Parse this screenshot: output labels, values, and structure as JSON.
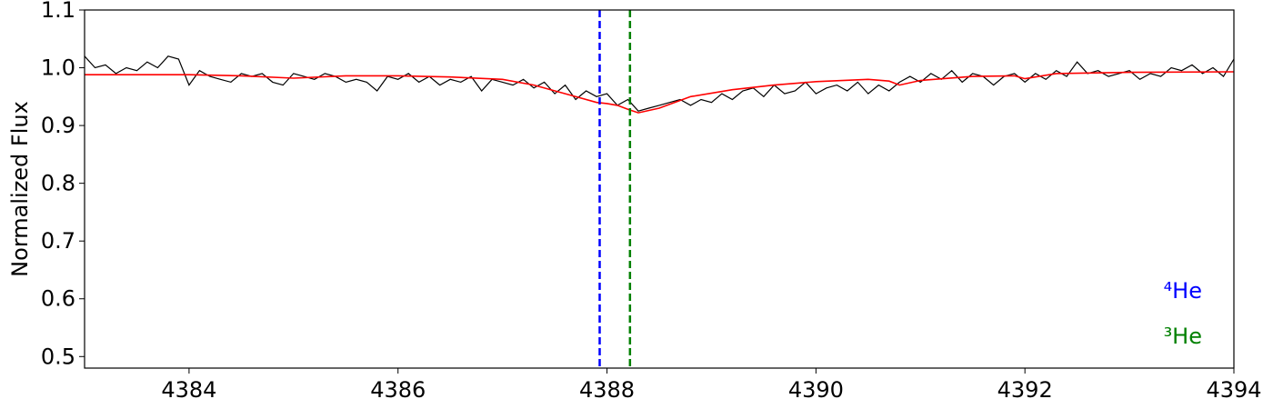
{
  "chart_data": {
    "type": "line",
    "ylabel": "Normalized Flux",
    "xlim": [
      4383,
      4394
    ],
    "xticks": [
      4384,
      4386,
      4388,
      4390,
      4392,
      4394
    ],
    "ylim": [
      0.48,
      1.1
    ],
    "yticks": [
      0.5,
      0.6,
      0.7,
      0.8,
      0.9,
      {
        "value": 1,
        "label": "1.0"
      },
      1.1
    ],
    "series": [
      {
        "color": "#000000",
        "x": [
          4383,
          4383.1,
          4383.2,
          4383.3,
          4383.4,
          4383.5,
          4383.6,
          4383.7,
          4383.8,
          4383.9,
          4384,
          4384.1,
          4384.2,
          4384.3,
          4384.4,
          4384.5,
          4384.6,
          4384.7,
          4384.8,
          4384.9,
          4385,
          4385.1,
          4385.2,
          4385.3,
          4385.4,
          4385.5,
          4385.6,
          4385.7,
          4385.8,
          4385.9,
          4386,
          4386.1,
          4386.2,
          4386.3,
          4386.4,
          4386.5,
          4386.6,
          4386.7,
          4386.8,
          4386.9,
          4387,
          4387.1,
          4387.2,
          4387.3,
          4387.4,
          4387.5,
          4387.6,
          4387.7,
          4387.8,
          4387.9,
          4388,
          4388.1,
          4388.2,
          4388.3,
          4388.4,
          4388.5,
          4388.6,
          4388.7,
          4388.8,
          4388.9,
          4389,
          4389.1,
          4389.2,
          4389.3,
          4389.4,
          4389.5,
          4389.6,
          4389.7,
          4389.8,
          4389.9,
          4390,
          4390.1,
          4390.2,
          4390.3,
          4390.4,
          4390.5,
          4390.6,
          4390.7,
          4390.8,
          4390.9,
          4391,
          4391.1,
          4391.2,
          4391.3,
          4391.4,
          4391.5,
          4391.6,
          4391.7,
          4391.8,
          4391.9,
          4392,
          4392.1,
          4392.2,
          4392.3,
          4392.4,
          4392.5,
          4392.6,
          4392.7,
          4392.8,
          4392.9,
          4393,
          4393.1,
          4393.2,
          4393.3,
          4393.4,
          4393.5,
          4393.6,
          4393.7,
          4393.8,
          4393.9,
          4394
        ],
        "values": [
          1.02,
          1.0,
          1.005,
          0.99,
          1.0,
          0.995,
          1.01,
          1.0,
          1.02,
          1.015,
          0.97,
          0.995,
          0.985,
          0.98,
          0.975,
          0.99,
          0.985,
          0.99,
          0.975,
          0.97,
          0.99,
          0.985,
          0.98,
          0.99,
          0.985,
          0.975,
          0.98,
          0.975,
          0.96,
          0.985,
          0.98,
          0.99,
          0.975,
          0.985,
          0.97,
          0.98,
          0.975,
          0.985,
          0.96,
          0.98,
          0.975,
          0.97,
          0.98,
          0.965,
          0.975,
          0.955,
          0.97,
          0.945,
          0.96,
          0.95,
          0.955,
          0.935,
          0.945,
          0.925,
          0.93,
          0.935,
          0.94,
          0.945,
          0.935,
          0.945,
          0.94,
          0.955,
          0.945,
          0.96,
          0.965,
          0.95,
          0.97,
          0.955,
          0.96,
          0.975,
          0.955,
          0.965,
          0.97,
          0.96,
          0.975,
          0.955,
          0.97,
          0.96,
          0.975,
          0.985,
          0.975,
          0.99,
          0.98,
          0.995,
          0.975,
          0.99,
          0.985,
          0.97,
          0.985,
          0.99,
          0.975,
          0.99,
          0.98,
          0.995,
          0.985,
          1.01,
          0.99,
          0.995,
          0.985,
          0.99,
          0.995,
          0.98,
          0.99,
          0.985,
          1.0,
          0.995,
          1.005,
          0.99,
          1.0,
          0.985,
          1.015
        ]
      },
      {
        "color": "#ff0000",
        "x": [
          4383,
          4383.5,
          4384,
          4384.5,
          4385,
          4385.5,
          4386,
          4386.5,
          4387,
          4387.3,
          4387.6,
          4387.9,
          4388,
          4388.1,
          4388.2,
          4388.3,
          4388.5,
          4388.8,
          4389.2,
          4389.6,
          4390,
          4390.5,
          4390.7,
          4390.8,
          4391,
          4391.5,
          4391.9,
          4392,
          4392.3,
          4393,
          4394
        ],
        "values": [
          0.988,
          0.988,
          0.988,
          0.986,
          0.982,
          0.986,
          0.986,
          0.984,
          0.98,
          0.97,
          0.955,
          0.94,
          0.938,
          0.935,
          0.928,
          0.922,
          0.93,
          0.95,
          0.962,
          0.97,
          0.976,
          0.98,
          0.977,
          0.97,
          0.978,
          0.985,
          0.986,
          0.981,
          0.99,
          0.992,
          0.993
        ]
      }
    ],
    "vlines": [
      {
        "x": 4387.93,
        "color": "#0000ff",
        "label": "⁴He"
      },
      {
        "x": 4388.22,
        "color": "#008000",
        "label": "³He"
      }
    ]
  }
}
